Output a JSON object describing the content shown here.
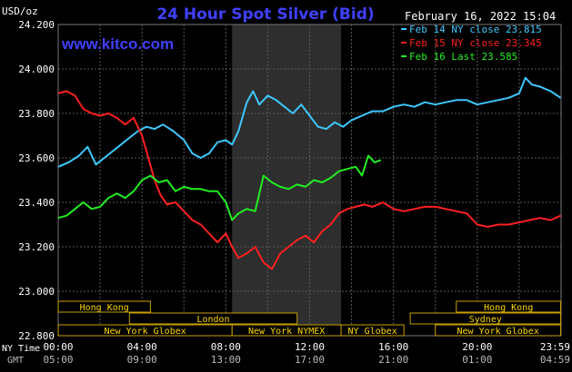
{
  "header": {
    "unit": "USD/oz",
    "title": "24 Hour Spot Silver (Bid)",
    "date": "February 16, 2022 15:04",
    "site": "www.kitco.com"
  },
  "colors": {
    "background": "#000000",
    "title": "#4040ff",
    "grid": "#5a5a5a",
    "highlight_band": "#2e2e2e",
    "session_fill": "#000000",
    "session_border": "#c8a000",
    "session_text": "#ffd700",
    "axis_text": "#ffffff",
    "footer_text": "#bbbbbb"
  },
  "chart_data": {
    "type": "line",
    "title": "24 Hour Spot Silver (Bid)",
    "ylabel": "USD/oz",
    "ylim": [
      22.8,
      24.2
    ],
    "xlim": [
      0,
      24
    ],
    "y_ticks": [
      "24.200",
      "24.000",
      "23.800",
      "23.600",
      "23.400",
      "23.200",
      "23.000",
      "22.800"
    ],
    "y_tick_values": [
      24.2,
      24.0,
      23.8,
      23.6,
      23.4,
      23.2,
      23.0,
      22.8
    ],
    "x_ticks_ny": [
      "00:00",
      "04:00",
      "08:00",
      "12:00",
      "16:00",
      "20:00",
      "23:59"
    ],
    "x_ticks_gmt": [
      "05:00",
      "09:00",
      "13:00",
      "17:00",
      "21:00",
      "01:00",
      "04:59"
    ],
    "x_tick_hours": [
      0,
      4,
      8,
      12,
      16,
      20,
      23.98
    ],
    "row_label_ny": "NY Time",
    "row_label_gmt": "GMT",
    "highlight_hours": [
      8.3,
      13.5
    ],
    "grid": true,
    "legend_position": "top-right",
    "series": [
      {
        "name": "Feb 14 NY close 23.815",
        "color": "#3ec8ff",
        "x": [
          0,
          0.5,
          1,
          1.4,
          1.8,
          2.2,
          2.6,
          3,
          3.4,
          3.8,
          4.2,
          4.6,
          5,
          5.5,
          6,
          6.4,
          6.8,
          7.2,
          7.6,
          8,
          8.3,
          8.6,
          9,
          9.3,
          9.6,
          10,
          10.4,
          10.8,
          11.2,
          11.6,
          12,
          12.4,
          12.8,
          13.2,
          13.6,
          14,
          14.5,
          15,
          15.5,
          16,
          16.5,
          17,
          17.5,
          18,
          18.5,
          19,
          19.5,
          20,
          20.5,
          21,
          21.5,
          22,
          22.3,
          22.6,
          23,
          23.5,
          23.98
        ],
        "y": [
          23.56,
          23.58,
          23.61,
          23.65,
          23.57,
          23.6,
          23.63,
          23.66,
          23.69,
          23.72,
          23.74,
          23.73,
          23.75,
          23.72,
          23.68,
          23.62,
          23.6,
          23.62,
          23.67,
          23.68,
          23.66,
          23.72,
          23.85,
          23.9,
          23.84,
          23.88,
          23.86,
          23.83,
          23.8,
          23.84,
          23.79,
          23.74,
          23.73,
          23.76,
          23.74,
          23.77,
          23.79,
          23.81,
          23.81,
          23.83,
          23.84,
          23.83,
          23.85,
          23.84,
          23.85,
          23.86,
          23.86,
          23.84,
          23.85,
          23.86,
          23.87,
          23.89,
          23.96,
          23.93,
          23.92,
          23.9,
          23.87
        ]
      },
      {
        "name": "Feb 15 NY close 23.345",
        "color": "#ff2020",
        "x": [
          0,
          0.4,
          0.8,
          1.2,
          1.6,
          2,
          2.4,
          2.8,
          3.2,
          3.6,
          4,
          4.3,
          4.6,
          4.9,
          5.2,
          5.6,
          6,
          6.4,
          6.8,
          7.2,
          7.6,
          8,
          8.3,
          8.6,
          9,
          9.4,
          9.8,
          10.2,
          10.6,
          11,
          11.4,
          11.8,
          12.2,
          12.6,
          13,
          13.4,
          13.8,
          14.2,
          14.6,
          15,
          15.5,
          16,
          16.5,
          17,
          17.5,
          18,
          18.5,
          19,
          19.5,
          20,
          20.5,
          21,
          21.5,
          22,
          22.5,
          23,
          23.5,
          23.98
        ],
        "y": [
          23.89,
          23.9,
          23.88,
          23.82,
          23.8,
          23.79,
          23.8,
          23.78,
          23.75,
          23.78,
          23.7,
          23.6,
          23.5,
          23.43,
          23.39,
          23.4,
          23.36,
          23.32,
          23.3,
          23.26,
          23.22,
          23.26,
          23.2,
          23.15,
          23.17,
          23.2,
          23.13,
          23.1,
          23.17,
          23.2,
          23.23,
          23.25,
          23.22,
          23.27,
          23.3,
          23.35,
          23.37,
          23.38,
          23.39,
          23.38,
          23.4,
          23.37,
          23.36,
          23.37,
          23.38,
          23.38,
          23.37,
          23.36,
          23.35,
          23.3,
          23.29,
          23.3,
          23.3,
          23.31,
          23.32,
          23.33,
          23.32,
          23.34
        ]
      },
      {
        "name": "Feb 16 Last 23.585",
        "color": "#22ee22",
        "x": [
          0,
          0.4,
          0.8,
          1.2,
          1.6,
          2,
          2.4,
          2.8,
          3.2,
          3.6,
          4,
          4.4,
          4.8,
          5.2,
          5.6,
          6,
          6.4,
          6.8,
          7.2,
          7.6,
          8,
          8.3,
          8.6,
          9,
          9.4,
          9.8,
          10.2,
          10.6,
          11,
          11.4,
          11.8,
          12.2,
          12.6,
          13,
          13.4,
          13.8,
          14.2,
          14.5,
          14.8,
          15.1,
          15.4
        ],
        "y": [
          23.33,
          23.34,
          23.37,
          23.4,
          23.37,
          23.38,
          23.42,
          23.44,
          23.42,
          23.45,
          23.5,
          23.52,
          23.49,
          23.5,
          23.45,
          23.47,
          23.46,
          23.46,
          23.45,
          23.45,
          23.4,
          23.32,
          23.35,
          23.37,
          23.36,
          23.52,
          23.49,
          23.47,
          23.46,
          23.48,
          23.47,
          23.5,
          23.49,
          23.51,
          23.54,
          23.55,
          23.56,
          23.52,
          23.61,
          23.58,
          23.59
        ]
      }
    ],
    "sessions": [
      {
        "label": "Hong Kong",
        "start": 0,
        "end": 4.4,
        "row": 1
      },
      {
        "label": "Hong Kong",
        "start": 19,
        "end": 23.98,
        "row": 1
      },
      {
        "label": "London",
        "start": 3.4,
        "end": 11.4,
        "row": 2
      },
      {
        "label": "Sydney",
        "start": 16.8,
        "end": 23.98,
        "row": 2
      },
      {
        "label": "New York Globex",
        "start": 0,
        "end": 8.3,
        "row": 3
      },
      {
        "label": "New York NYMEX",
        "start": 8.3,
        "end": 13.5,
        "row": 3
      },
      {
        "label": "NY Globex",
        "start": 13.5,
        "end": 16.5,
        "row": 3
      },
      {
        "label": "New York Globex",
        "start": 18,
        "end": 23.98,
        "row": 3
      }
    ]
  }
}
